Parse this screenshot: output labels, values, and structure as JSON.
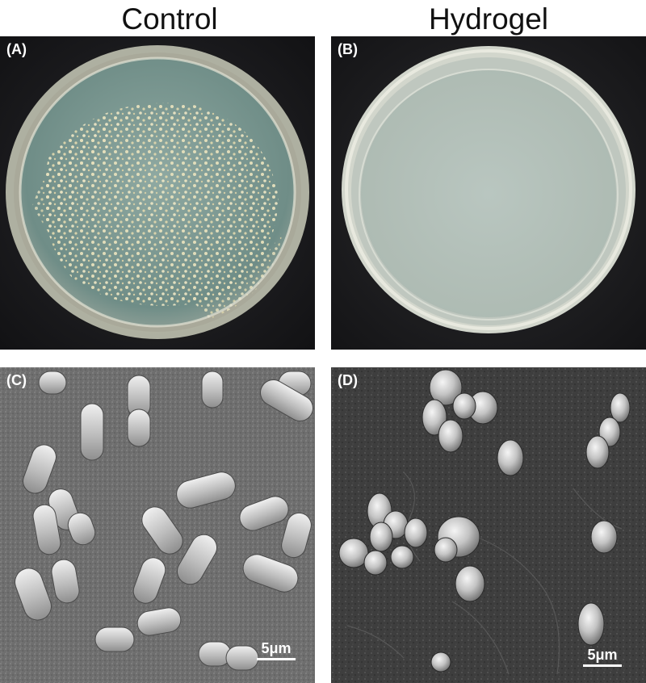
{
  "columns": {
    "left_title": "Control",
    "right_title": "Hydrogel"
  },
  "panels": {
    "a": {
      "label": "(A)"
    },
    "b": {
      "label": "(B)"
    },
    "c": {
      "label": "(C)",
      "scale": "5μm"
    },
    "d": {
      "label": "(D)",
      "scale": "5μm"
    }
  },
  "colors": {
    "background": "#1c1c1e",
    "agar": "#a8b8ae",
    "colony": "#d8d4b4",
    "sem_surface": "#7a7a7a",
    "sem_surface_dark": "#4a4a4a"
  }
}
